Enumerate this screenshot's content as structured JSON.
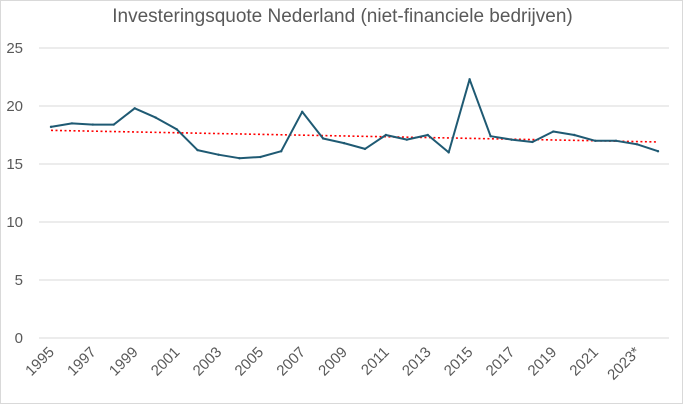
{
  "chart_data": {
    "type": "line",
    "title": "Investeringsquote Nederland (niet-financiele bedrijven)",
    "xlabel": "",
    "ylabel": "",
    "ylim": [
      0,
      25
    ],
    "yticks": [
      "0",
      "5",
      "10",
      "15",
      "20",
      "25"
    ],
    "grid": true,
    "legend": "none",
    "categories": [
      "1995",
      "1996",
      "1997",
      "1998",
      "1999",
      "2000",
      "2001",
      "2002",
      "2003",
      "2004",
      "2005",
      "2006",
      "2007",
      "2008",
      "2009",
      "2010",
      "2011",
      "2012",
      "2013",
      "2014",
      "2015",
      "2016",
      "2017",
      "2018",
      "2019",
      "2020",
      "2021",
      "2022",
      "2023*",
      "2024"
    ],
    "xtick_labels": [
      "1995",
      "1997",
      "1999",
      "2001",
      "2003",
      "2005",
      "2007",
      "2009",
      "2011",
      "2013",
      "2015",
      "2017",
      "2019",
      "2021",
      "2023*"
    ],
    "series": [
      {
        "values": [
          18.2,
          18.5,
          18.4,
          18.4,
          19.8,
          19.0,
          18.0,
          16.2,
          15.8,
          15.5,
          15.6,
          16.1,
          19.5,
          17.2,
          16.8,
          16.3,
          17.5,
          17.1,
          17.5,
          16.0,
          22.3,
          17.4,
          17.1,
          16.9,
          17.8,
          17.5,
          17.0,
          17.0,
          16.7,
          16.1
        ],
        "color": "#1f5a73"
      }
    ],
    "trendline": {
      "type": "linear",
      "start": 17.9,
      "end": 16.9,
      "color": "#ff0000",
      "style": "dotted"
    }
  }
}
